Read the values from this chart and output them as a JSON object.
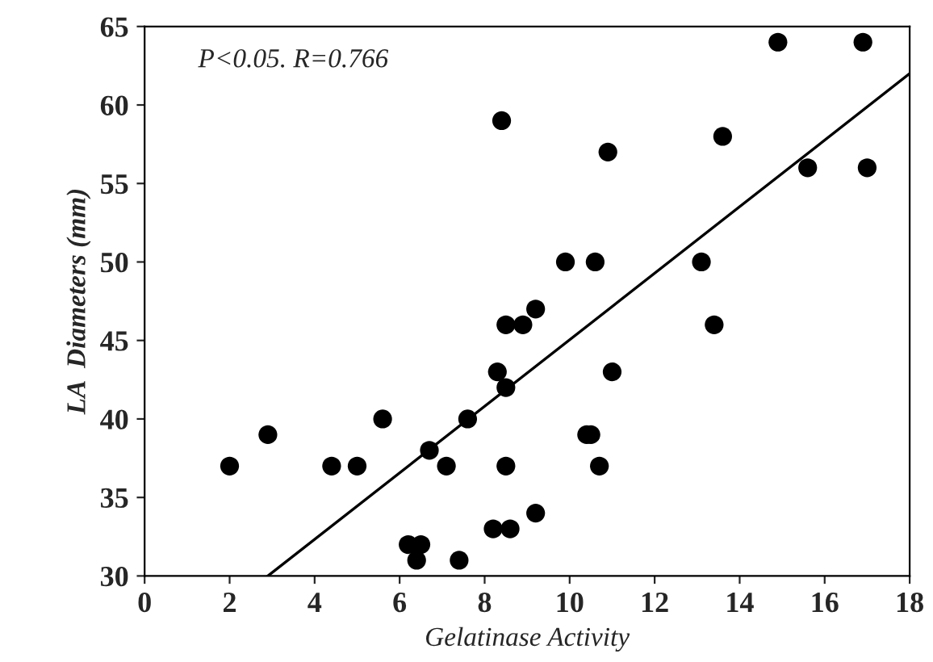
{
  "chart_data": {
    "type": "scatter",
    "xlabel": "Gelatinase Activity",
    "ylabel": "LA  Diameters (mm)",
    "annotations": [
      "P<0.05. R=0.766"
    ],
    "xlim": [
      0,
      18
    ],
    "xticks": [
      0,
      2,
      4,
      6,
      8,
      10,
      12,
      14,
      16,
      18
    ],
    "ylim": [
      30,
      65
    ],
    "yticks": [
      30,
      35,
      40,
      45,
      50,
      55,
      60,
      65
    ],
    "grid": false,
    "marker": "circle",
    "series": [
      {
        "color": "#000000",
        "x": [
          2.0,
          2.9,
          4.4,
          5.0,
          5.6,
          6.2,
          6.4,
          6.5,
          6.7,
          7.1,
          7.4,
          7.6,
          8.2,
          8.3,
          8.4,
          8.5,
          8.5,
          8.5,
          8.6,
          8.9,
          9.2,
          9.2,
          9.9,
          10.4,
          10.5,
          10.7,
          10.6,
          10.9,
          11.0,
          13.1,
          13.4,
          13.6,
          14.9,
          15.6,
          16.9,
          17.0
        ],
        "values": [
          37,
          39,
          37,
          37,
          40,
          32,
          31,
          32,
          38,
          37,
          31,
          40,
          33,
          43,
          59,
          46,
          42,
          37,
          33,
          46,
          47,
          34,
          50,
          39,
          39,
          37,
          50,
          57,
          43,
          50,
          46,
          58,
          64,
          56,
          64,
          56
        ]
      },
      {
        "type": "line",
        "color": "#000000",
        "line_style": "solid",
        "marker": "none",
        "x": [
          2.9,
          18
        ],
        "values": [
          30,
          62
        ]
      }
    ]
  }
}
